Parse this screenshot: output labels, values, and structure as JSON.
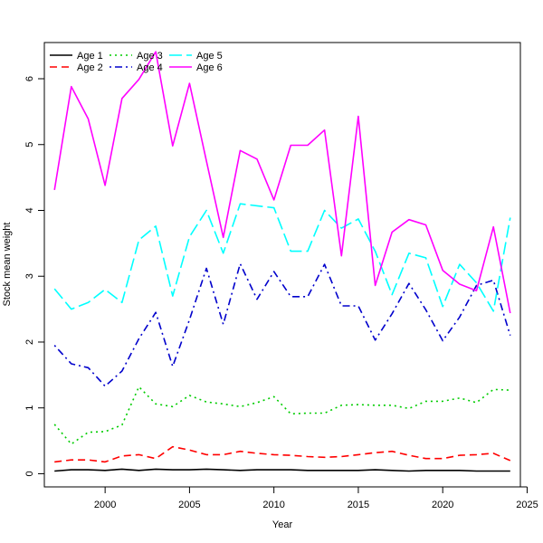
{
  "chart_data": {
    "type": "line",
    "xlabel": "Year",
    "ylabel": "Stock mean weight",
    "xlim": [
      1996.4,
      2024.6
    ],
    "ylim": [
      -0.2,
      6.55
    ],
    "x_ticks": [
      2000,
      2005,
      2010,
      2015,
      2020,
      2025
    ],
    "y_ticks": [
      0,
      1,
      2,
      3,
      4,
      5,
      6
    ],
    "legend_position": "top-left",
    "grid": false,
    "x": [
      1997,
      1998,
      1999,
      2000,
      2001,
      2002,
      2003,
      2004,
      2005,
      2006,
      2007,
      2008,
      2009,
      2010,
      2011,
      2012,
      2013,
      2014,
      2015,
      2016,
      2017,
      2018,
      2019,
      2020,
      2021,
      2022,
      2023,
      2024
    ],
    "series": [
      {
        "name": "Age 1",
        "color": "#000000",
        "dash": "solid",
        "values": [
          0.04,
          0.06,
          0.06,
          0.05,
          0.07,
          0.05,
          0.07,
          0.06,
          0.06,
          0.07,
          0.06,
          0.05,
          0.06,
          0.06,
          0.06,
          0.05,
          0.05,
          0.05,
          0.05,
          0.06,
          0.05,
          0.04,
          0.05,
          0.05,
          0.05,
          0.04,
          0.04,
          0.04
        ]
      },
      {
        "name": "Age 2",
        "color": "#ff0000",
        "dash": "dashed",
        "values": [
          0.18,
          0.21,
          0.21,
          0.18,
          0.27,
          0.29,
          0.23,
          0.41,
          0.36,
          0.29,
          0.29,
          0.34,
          0.31,
          0.29,
          0.28,
          0.26,
          0.25,
          0.26,
          0.29,
          0.32,
          0.34,
          0.28,
          0.23,
          0.23,
          0.28,
          0.29,
          0.31,
          0.2
        ]
      },
      {
        "name": "Age 3",
        "color": "#00cc00",
        "dash": "dotted",
        "values": [
          0.75,
          0.45,
          0.63,
          0.64,
          0.74,
          1.32,
          1.06,
          1.02,
          1.19,
          1.09,
          1.06,
          1.02,
          1.08,
          1.17,
          0.91,
          0.92,
          0.92,
          1.04,
          1.05,
          1.04,
          1.04,
          0.99,
          1.1,
          1.1,
          1.15,
          1.08,
          1.28,
          1.27
        ]
      },
      {
        "name": "Age 4",
        "color": "#0000cc",
        "dash": "dotdash",
        "values": [
          1.95,
          1.67,
          1.61,
          1.33,
          1.56,
          2.05,
          2.45,
          1.63,
          2.34,
          3.12,
          2.27,
          3.19,
          2.65,
          3.07,
          2.69,
          2.69,
          3.18,
          2.55,
          2.55,
          2.03,
          2.43,
          2.89,
          2.49,
          2.02,
          2.38,
          2.86,
          2.94,
          2.1
        ]
      },
      {
        "name": "Age 5",
        "color": "#00ffff",
        "dash": "longdash",
        "values": [
          2.81,
          2.5,
          2.6,
          2.8,
          2.6,
          3.55,
          3.76,
          2.7,
          3.6,
          4.0,
          3.35,
          4.1,
          4.07,
          4.04,
          3.38,
          3.38,
          4.0,
          3.73,
          3.87,
          3.38,
          2.72,
          3.35,
          3.28,
          2.54,
          3.18,
          2.9,
          2.47,
          3.89
        ]
      },
      {
        "name": "Age 6",
        "color": "#ff00ff",
        "dash": "solid",
        "values": [
          4.31,
          5.88,
          5.39,
          4.38,
          5.7,
          5.99,
          6.41,
          4.98,
          5.93,
          4.75,
          3.59,
          4.91,
          4.78,
          4.16,
          4.99,
          4.99,
          5.22,
          3.31,
          5.43,
          2.86,
          3.67,
          3.86,
          3.78,
          3.09,
          2.88,
          2.78,
          3.75,
          2.44
        ]
      }
    ]
  }
}
